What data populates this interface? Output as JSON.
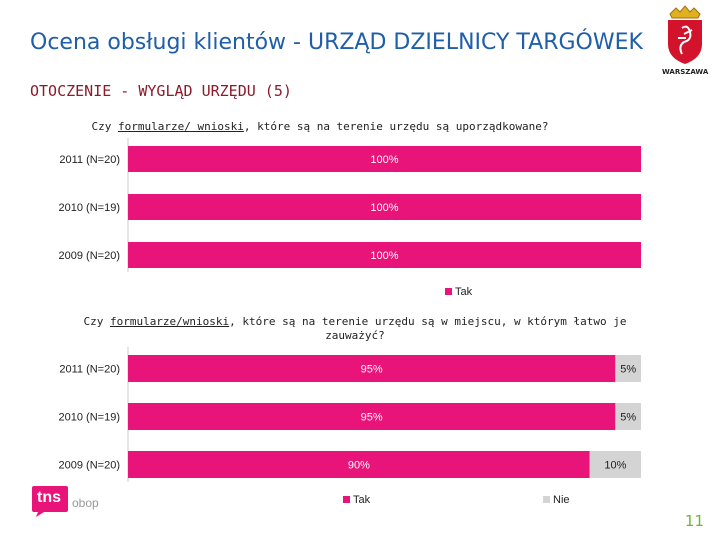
{
  "header": {
    "title": "Ocena obsługi klientów - URZĄD DZIELNICY TARGÓWEK",
    "subtitle": "OTOCZENIE - WYGLĄD URZĘDU (5)",
    "logo_text": "WARSZAWA"
  },
  "footer": {
    "page_number": "11",
    "brand_main": "tns",
    "brand_sub": "obop"
  },
  "colors": {
    "tak": "#e8147a",
    "nie": "#d4d4d4"
  },
  "chart_data": [
    {
      "type": "bar",
      "orientation": "horizontal",
      "stacked": true,
      "title_pre": "Czy ",
      "title_underlined": "formularze/ wnioski",
      "title_post": ", które są na terenie urzędu są uporządkowane?",
      "categories": [
        "2011 (N=20)",
        "2010 (N=19)",
        "2009 (N=20)"
      ],
      "series": [
        {
          "name": "Tak",
          "values": [
            100,
            100,
            100
          ],
          "labels": [
            "100%",
            "100%",
            "100%"
          ]
        }
      ],
      "legend": "bottom"
    },
    {
      "type": "bar",
      "orientation": "horizontal",
      "stacked": true,
      "title_pre": "Czy ",
      "title_underlined": "formularze/wnioski",
      "title_post": ", które są na terenie urzędu są w miejscu, w którym łatwo je zauważyć?",
      "categories": [
        "2011 (N=20)",
        "2010 (N=19)",
        "2009 (N=20)"
      ],
      "series": [
        {
          "name": "Tak",
          "values": [
            95,
            95,
            90
          ],
          "labels": [
            "95%",
            "95%",
            "90%"
          ]
        },
        {
          "name": "Nie",
          "values": [
            5,
            5,
            10
          ],
          "labels": [
            "5%",
            "5%",
            "10%"
          ]
        }
      ],
      "legend": "bottom"
    }
  ]
}
